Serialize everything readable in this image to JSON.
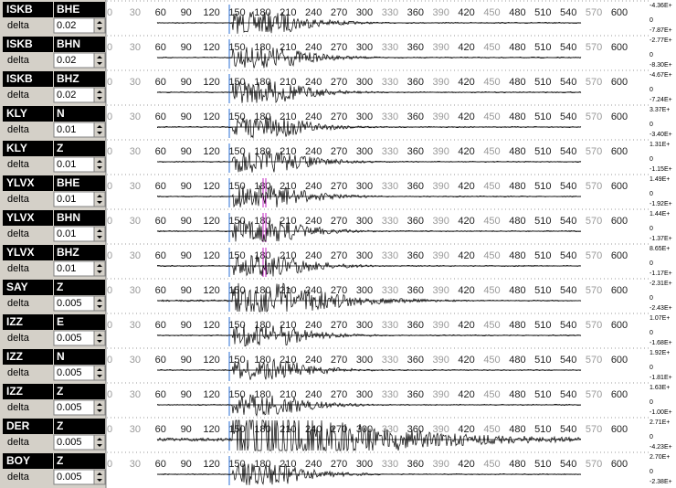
{
  "delta_label": "delta",
  "axis_ticks": [
    0,
    30,
    60,
    90,
    120,
    150,
    180,
    210,
    240,
    270,
    300,
    330,
    360,
    390,
    420,
    450,
    480,
    510,
    540,
    570,
    600
  ],
  "channels": [
    {
      "station": "ISKB",
      "component": "BHE",
      "delta": "0.02",
      "max": "-4.36E+",
      "zero": "0",
      "min": "-7.87E+"
    },
    {
      "station": "ISKB",
      "component": "BHN",
      "delta": "0.02",
      "max": "-2.77E+",
      "zero": "0",
      "min": "-8.30E+"
    },
    {
      "station": "ISKB",
      "component": "BHZ",
      "delta": "0.02",
      "max": "-4.67E+",
      "zero": "0",
      "min": "-7.24E+"
    },
    {
      "station": "KLY",
      "component": "N",
      "delta": "0.01",
      "max": "3.37E+",
      "zero": "0",
      "min": "-3.40E+"
    },
    {
      "station": "KLY",
      "component": "Z",
      "delta": "0.01",
      "max": "1.31E+",
      "zero": "0",
      "min": "-1.15E+"
    },
    {
      "station": "YLVX",
      "component": "BHE",
      "delta": "0.01",
      "max": "1.49E+",
      "zero": "0",
      "min": "-1.92E+"
    },
    {
      "station": "YLVX",
      "component": "BHN",
      "delta": "0.01",
      "max": "1.44E+",
      "zero": "0",
      "min": "-1.37E+"
    },
    {
      "station": "YLVX",
      "component": "BHZ",
      "delta": "0.01",
      "max": "8.65E+",
      "zero": "0",
      "min": "-1.17E+"
    },
    {
      "station": "SAY",
      "component": "Z",
      "delta": "0.005",
      "max": "-2.31E+",
      "zero": "0",
      "min": "-2.43E+"
    },
    {
      "station": "IZZ",
      "component": "E",
      "delta": "0.005",
      "max": "1.07E+",
      "zero": "0",
      "min": "-1.68E+"
    },
    {
      "station": "IZZ",
      "component": "N",
      "delta": "0.005",
      "max": "1.92E+",
      "zero": "0",
      "min": "-1.81E+"
    },
    {
      "station": "IZZ",
      "component": "Z",
      "delta": "0.005",
      "max": "1.63E+",
      "zero": "0",
      "min": "-1.00E+"
    },
    {
      "station": "DER",
      "component": "Z",
      "delta": "0.005",
      "max": "2.71E+",
      "zero": "0",
      "min": "-4.23E+"
    },
    {
      "station": "BOY",
      "component": "Z",
      "delta": "0.005",
      "max": "2.70E+",
      "zero": "0",
      "min": "-2.38E+"
    }
  ]
}
